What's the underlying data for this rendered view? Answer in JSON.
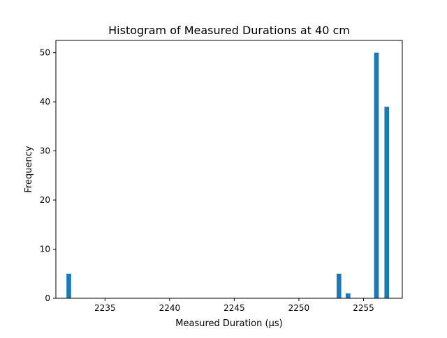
{
  "chart_data": {
    "type": "bar",
    "title": "Histogram of Measured Durations at 40 cm",
    "xlabel": "Measured Duration (µs)",
    "ylabel": "Frequency",
    "xlim": [
      2231.2,
      2258.0
    ],
    "ylim": [
      0,
      52.5
    ],
    "xticks": [
      2235,
      2240,
      2245,
      2250,
      2255
    ],
    "yticks": [
      0,
      10,
      20,
      30,
      40,
      50
    ],
    "bin_width": 0.36,
    "bars": [
      {
        "x": 2232.2,
        "count": 5
      },
      {
        "x": 2253.1,
        "count": 5
      },
      {
        "x": 2253.8,
        "count": 1
      },
      {
        "x": 2256.0,
        "count": 50
      },
      {
        "x": 2256.8,
        "count": 39
      }
    ],
    "bar_color": "#1f77b4",
    "grid": false
  }
}
